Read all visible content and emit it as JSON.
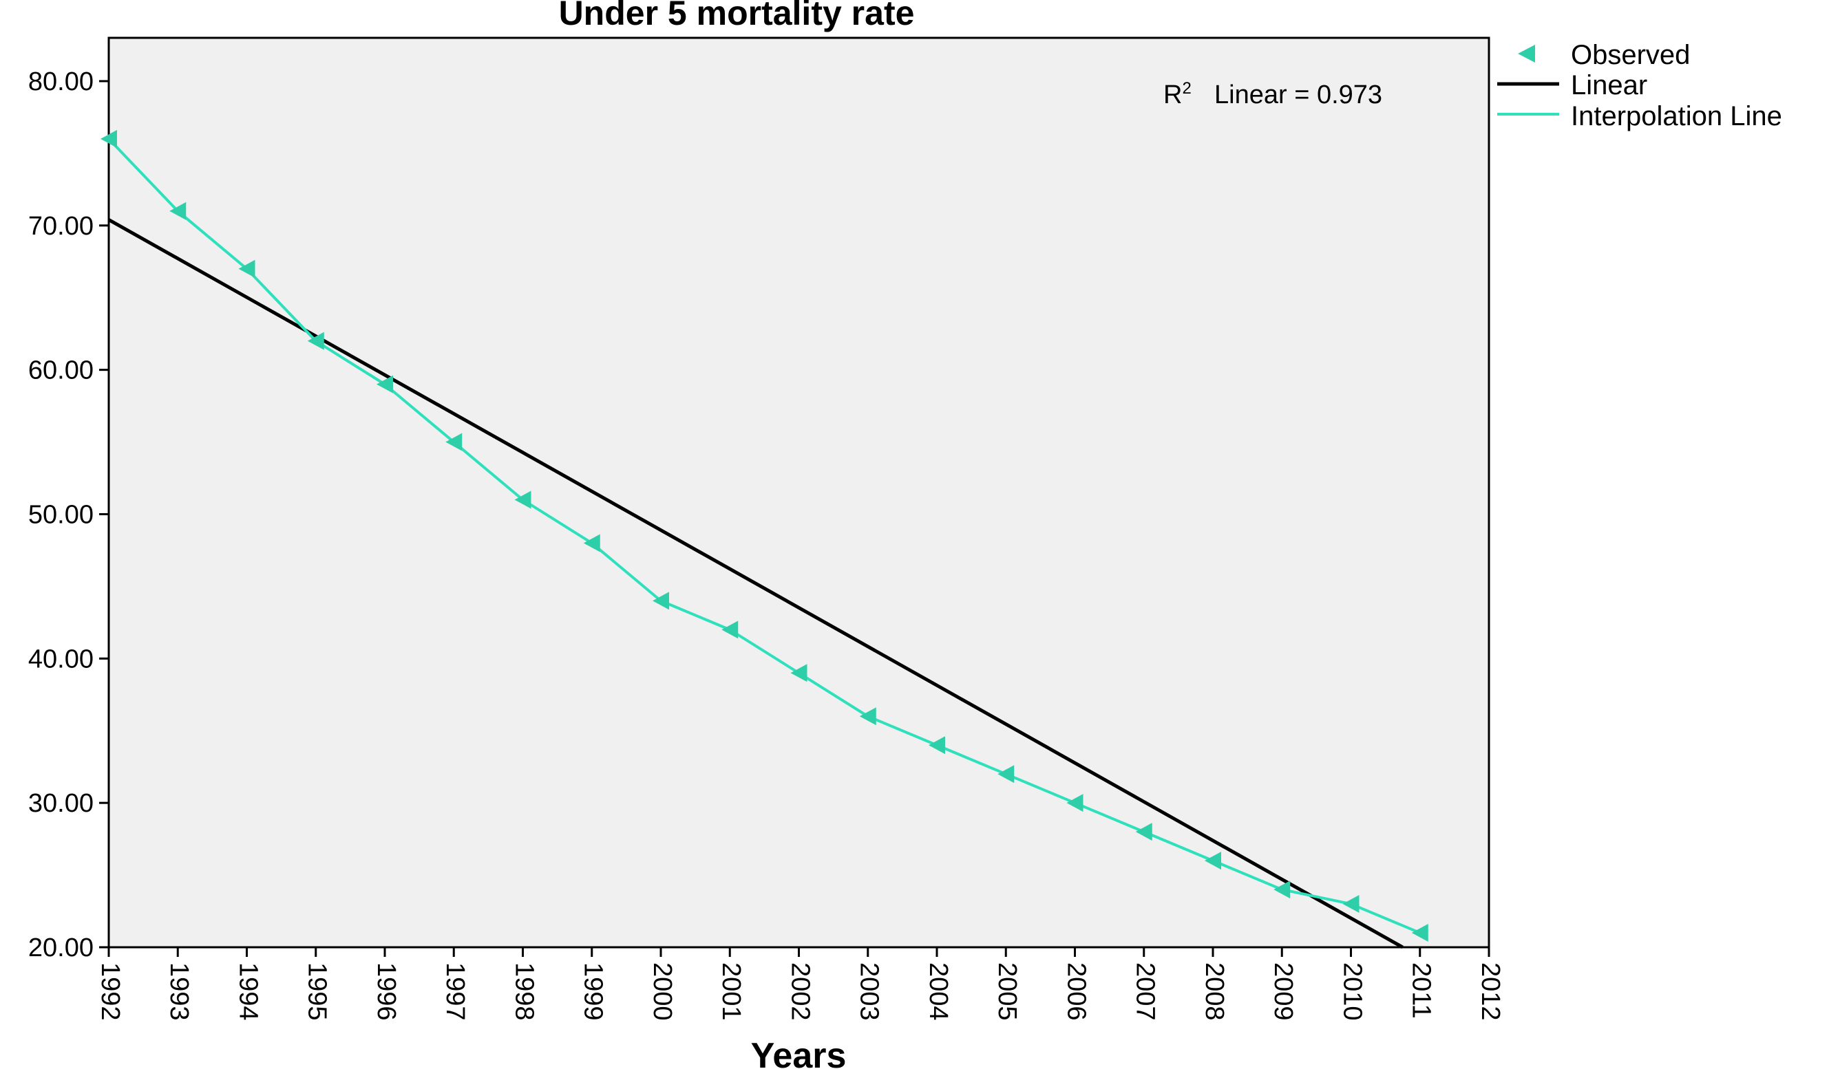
{
  "chart_data": {
    "type": "line",
    "title": "Under 5 mortality rate",
    "xlabel": "Years",
    "ylabel": "",
    "xlim": [
      1992,
      2012
    ],
    "ylim": [
      20,
      83
    ],
    "y_ticks": [
      "20.00",
      "30.00",
      "40.00",
      "50.00",
      "60.00",
      "70.00",
      "80.00"
    ],
    "x_ticks": [
      "1992",
      "1993",
      "1994",
      "1995",
      "1996",
      "1997",
      "1998",
      "1999",
      "2000",
      "2001",
      "2002",
      "2003",
      "2004",
      "2005",
      "2006",
      "2007",
      "2008",
      "2009",
      "2010",
      "2011",
      "2012"
    ],
    "grid": false,
    "legend_position": "right",
    "background_color": "#f0f0f0",
    "series": [
      {
        "name": "Observed",
        "kind": "marker",
        "marker": "left-triangle",
        "color": "#2ecfa8",
        "x": [
          1992,
          1993,
          1994,
          1995,
          1996,
          1997,
          1998,
          1999,
          2000,
          2001,
          2002,
          2003,
          2004,
          2005,
          2006,
          2007,
          2008,
          2009,
          2010,
          2011
        ],
        "y": [
          76,
          71,
          67,
          62,
          59,
          55,
          51,
          48,
          44,
          42,
          39,
          36,
          34,
          32,
          30,
          28,
          26,
          24,
          23,
          21
        ]
      },
      {
        "name": "Linear",
        "kind": "line",
        "color": "#000000",
        "x": [
          1992,
          2010.75
        ],
        "y": [
          70.4,
          20
        ]
      },
      {
        "name": "Interpolation Line",
        "kind": "line",
        "color": "#2ee0bb",
        "x": [
          1992,
          1993,
          1994,
          1995,
          1996,
          1997,
          1998,
          1999,
          2000,
          2001,
          2002,
          2003,
          2004,
          2005,
          2006,
          2007,
          2008,
          2009,
          2010,
          2011
        ],
        "y": [
          76,
          71,
          67,
          62,
          59,
          55,
          51,
          48,
          44,
          42,
          39,
          36,
          34,
          32,
          30,
          28,
          26,
          24,
          23,
          21
        ]
      }
    ],
    "annotation": {
      "r_symbol": "R",
      "superscript": "2",
      "text": "Linear = 0.973"
    }
  }
}
